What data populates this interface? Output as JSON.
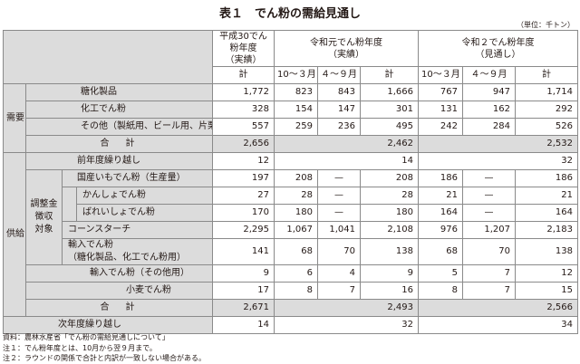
{
  "title": "表１　でん粉の需給見通し",
  "unit": "（単位：千トン）",
  "headers": {
    "h30": "平成30でん粉年度（実績）",
    "r1": "令和元でん粉年度（実績）",
    "r2": "令和２でん粉年度（見通し）",
    "total": "計",
    "oct_mar": "10～３月",
    "apr_sep": "４～９月"
  },
  "sections": {
    "demand": "需要",
    "supply": "供給",
    "adjust": "調整金徴収対象"
  },
  "rows": {
    "d1": {
      "label": "糖化製品",
      "v": [
        "1,772",
        "823",
        "843",
        "1,666",
        "767",
        "947",
        "1,714"
      ]
    },
    "d2": {
      "label": "化工でん粉",
      "v": [
        "328",
        "154",
        "147",
        "301",
        "131",
        "162",
        "292"
      ]
    },
    "d3": {
      "label": "その他（製紙用、ビール用、片栗粉など）",
      "v": [
        "557",
        "259",
        "236",
        "495",
        "242",
        "284",
        "526"
      ]
    },
    "dt": {
      "label": "合　計",
      "v": [
        "2,656",
        "2,462",
        "2,532"
      ]
    },
    "s0": {
      "label": "前年度繰り越し",
      "v": [
        "12",
        "14",
        "32"
      ]
    },
    "s1": {
      "label": "国産いもでん粉（生産量）",
      "v": [
        "197",
        "208",
        "—",
        "208",
        "186",
        "—",
        "186"
      ]
    },
    "s2": {
      "label": "かんしょでん粉",
      "v": [
        "27",
        "28",
        "—",
        "28",
        "21",
        "—",
        "21"
      ]
    },
    "s3": {
      "label": "ばれいしょでん粉",
      "v": [
        "170",
        "180",
        "—",
        "180",
        "164",
        "—",
        "164"
      ]
    },
    "s4": {
      "label": "コーンスターチ",
      "v": [
        "2,295",
        "1,067",
        "1,041",
        "2,108",
        "976",
        "1,207",
        "2,183"
      ]
    },
    "s5": {
      "label": "輸入でん粉（糖化製品、化工でん粉用）",
      "v": [
        "141",
        "68",
        "70",
        "138",
        "68",
        "70",
        "138"
      ]
    },
    "s6": {
      "label": "輸入でん粉（その他用）",
      "v": [
        "9",
        "6",
        "4",
        "9",
        "5",
        "7",
        "12"
      ]
    },
    "s7": {
      "label": "小麦でん粉",
      "v": [
        "17",
        "8",
        "7",
        "16",
        "8",
        "7",
        "15"
      ]
    },
    "st": {
      "label": "合　計",
      "v": [
        "2,671",
        "2,493",
        "2,566"
      ]
    },
    "carry": {
      "label": "次年度繰り越し",
      "v": [
        "14",
        "32",
        "34"
      ]
    }
  },
  "notes": [
    "資料：農林水産省「でん粉の需給見通しについて」",
    "注１：でん粉年度とは、10月から翌９月まで。",
    "注２：ラウンドの関係で合計と内訳が一致しない場合がある。"
  ]
}
